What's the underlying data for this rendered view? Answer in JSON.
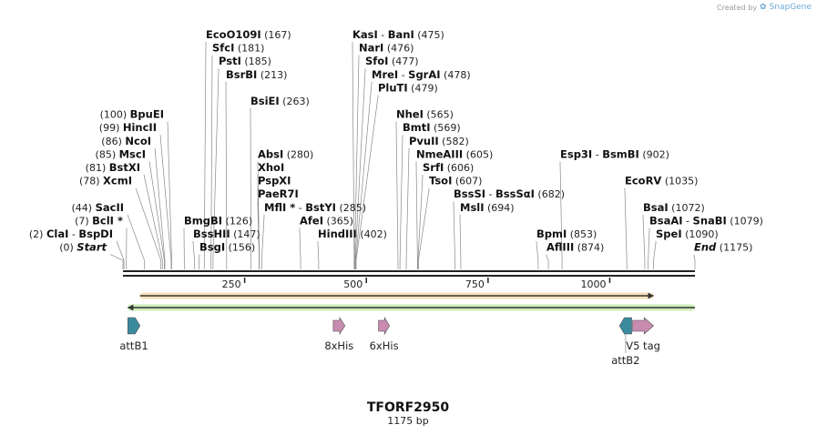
{
  "credit": {
    "prefix": "Created by",
    "brand": "SnapGene"
  },
  "map": {
    "name": "TFORF2950",
    "length_label": "1175 bp",
    "length": 1175,
    "ticks": [
      {
        "pos": 250,
        "label": "250"
      },
      {
        "pos": 500,
        "label": "500"
      },
      {
        "pos": 750,
        "label": "750"
      },
      {
        "pos": 1000,
        "label": "1000"
      }
    ]
  },
  "sites": [
    {
      "name": "EcoO109I",
      "pos": "167",
      "bp": 167,
      "row": 0,
      "side": "right"
    },
    {
      "name": "SfcI",
      "pos": "181",
      "bp": 181,
      "row": 1,
      "side": "right"
    },
    {
      "name": "PstI",
      "pos": "185",
      "bp": 185,
      "row": 2,
      "side": "right"
    },
    {
      "name": "BsrBI",
      "pos": "213",
      "bp": 213,
      "row": 3,
      "side": "right"
    },
    {
      "name": "BsiEI",
      "pos": "263",
      "bp": 263,
      "row": 5,
      "side": "right"
    },
    {
      "name": "AbsI",
      "pos": "280",
      "bp": 280,
      "row": 9,
      "side": "right"
    },
    {
      "name": "XhoI",
      "pos": "",
      "bp": 280,
      "row": 10,
      "side": "right"
    },
    {
      "name": "PspXI",
      "pos": "",
      "bp": 280,
      "row": 11,
      "side": "right"
    },
    {
      "name": "PaeR7I",
      "pos": "",
      "bp": 280,
      "row": 12,
      "side": "right"
    },
    {
      "name": "MflI",
      "star": true,
      "name2": "BstYI",
      "pos": "285",
      "bp": 285,
      "row": 13,
      "side": "right"
    },
    {
      "name": "AfeI",
      "pos": "365",
      "bp": 365,
      "row": 14,
      "side": "right"
    },
    {
      "name": "HindIII",
      "pos": "402",
      "bp": 402,
      "row": 15,
      "side": "right"
    },
    {
      "name": "KasI",
      "name2": "BanI",
      "pos": "475",
      "bp": 475,
      "row": 0,
      "side": "right"
    },
    {
      "name": "NarI",
      "pos": "476",
      "bp": 476,
      "row": 1,
      "side": "right"
    },
    {
      "name": "SfoI",
      "pos": "477",
      "bp": 477,
      "row": 2,
      "side": "right"
    },
    {
      "name": "MreI",
      "name2": "SgrAI",
      "pos": "478",
      "bp": 478,
      "row": 3,
      "side": "right"
    },
    {
      "name": "PluTI",
      "pos": "479",
      "bp": 479,
      "row": 4,
      "side": "right"
    },
    {
      "name": "NheI",
      "pos": "565",
      "bp": 565,
      "row": 6,
      "side": "right"
    },
    {
      "name": "BmtI",
      "pos": "569",
      "bp": 569,
      "row": 7,
      "side": "right"
    },
    {
      "name": "PvuII",
      "pos": "582",
      "bp": 582,
      "row": 8,
      "side": "right"
    },
    {
      "name": "NmeAIII",
      "pos": "605",
      "bp": 605,
      "row": 9,
      "side": "right"
    },
    {
      "name": "SrfI",
      "pos": "606",
      "bp": 606,
      "row": 10,
      "side": "right"
    },
    {
      "name": "TsoI",
      "pos": "607",
      "bp": 607,
      "row": 11,
      "side": "right"
    },
    {
      "name": "BssSI",
      "name2": "BssSαI",
      "pos": "682",
      "bp": 682,
      "row": 12,
      "side": "right"
    },
    {
      "name": "MslI",
      "pos": "694",
      "bp": 694,
      "row": 13,
      "side": "right"
    },
    {
      "name": "Esp3I",
      "name2": "BsmBI",
      "pos": "902",
      "bp": 902,
      "row": 9,
      "side": "right"
    },
    {
      "name": "BpmI",
      "pos": "853",
      "bp": 853,
      "row": 15,
      "side": "right"
    },
    {
      "name": "AflIII",
      "pos": "874",
      "bp": 874,
      "row": 16,
      "side": "right"
    },
    {
      "name": "EcoRV",
      "pos": "1035",
      "bp": 1035,
      "row": 11,
      "side": "right"
    },
    {
      "name": "BsaI",
      "pos": "1072",
      "bp": 1072,
      "row": 13,
      "side": "right"
    },
    {
      "name": "BsaAI",
      "name2": "SnaBI",
      "pos": "1079",
      "bp": 1079,
      "row": 14,
      "side": "right"
    },
    {
      "name": "SpeI",
      "pos": "1090",
      "bp": 1090,
      "row": 15,
      "side": "right"
    },
    {
      "name": "End",
      "italic": true,
      "pos": "1175",
      "bp": 1175,
      "row": 16,
      "side": "right"
    },
    {
      "name": "BmgBI",
      "pos": "126",
      "bp": 126,
      "row": 14,
      "side": "right"
    },
    {
      "name": "BssHII",
      "pos": "147",
      "bp": 147,
      "row": 15,
      "side": "right"
    },
    {
      "name": "BsgI",
      "pos": "156",
      "bp": 156,
      "row": 16,
      "side": "right"
    },
    {
      "name": "BpuEI",
      "pos": "100",
      "bp": 100,
      "row": 6,
      "side": "left"
    },
    {
      "name": "HincII",
      "pos": "99",
      "bp": 99,
      "row": 7,
      "side": "left"
    },
    {
      "name": "NcoI",
      "pos": "86",
      "bp": 86,
      "row": 8,
      "side": "left"
    },
    {
      "name": "MscI",
      "pos": "85",
      "bp": 85,
      "row": 9,
      "side": "left"
    },
    {
      "name": "BstXI",
      "pos": "81",
      "bp": 81,
      "row": 10,
      "side": "left"
    },
    {
      "name": "XcmI",
      "pos": "78",
      "bp": 78,
      "row": 11,
      "side": "left"
    },
    {
      "name": "SacII",
      "pos": "44",
      "bp": 44,
      "row": 13,
      "side": "left"
    },
    {
      "name": "BclI",
      "star": true,
      "pos": "7",
      "bp": 7,
      "row": 14,
      "side": "left"
    },
    {
      "name": "ClaI",
      "name2": "BspDI",
      "pos": "2",
      "bp": 2,
      "row": 15,
      "side": "left"
    },
    {
      "name": "Start",
      "italic": true,
      "pos": "0",
      "bp": 0,
      "row": 16,
      "side": "left"
    }
  ],
  "features": [
    {
      "name": "attB1",
      "type": "att",
      "start": 10,
      "end": 35,
      "dir": "forward",
      "color": "#3a8a9e",
      "label_side": "below"
    },
    {
      "name": "8xHis",
      "type": "tag",
      "start": 432,
      "end": 456,
      "dir": "forward",
      "color": "#c98cb0",
      "label_side": "below"
    },
    {
      "name": "6xHis",
      "type": "tag",
      "start": 525,
      "end": 543,
      "dir": "forward",
      "color": "#c98cb0",
      "label_side": "below"
    },
    {
      "name": "attB2",
      "type": "att",
      "start": 1020,
      "end": 1045,
      "dir": "reverse",
      "color": "#3a8a9e",
      "label_side": "below-far"
    },
    {
      "name": "V5 tag",
      "type": "tag",
      "start": 1047,
      "end": 1090,
      "dir": "forward",
      "color": "#c98cb0",
      "label_side": "below"
    }
  ],
  "orfs": [
    {
      "name": "orf-forward",
      "start": 35,
      "end": 1090,
      "dir": "forward",
      "color": "#e8a23a"
    },
    {
      "name": "orf-reverse",
      "start": 10,
      "end": 1175,
      "dir": "reverse",
      "color": "#6fce3a"
    }
  ]
}
